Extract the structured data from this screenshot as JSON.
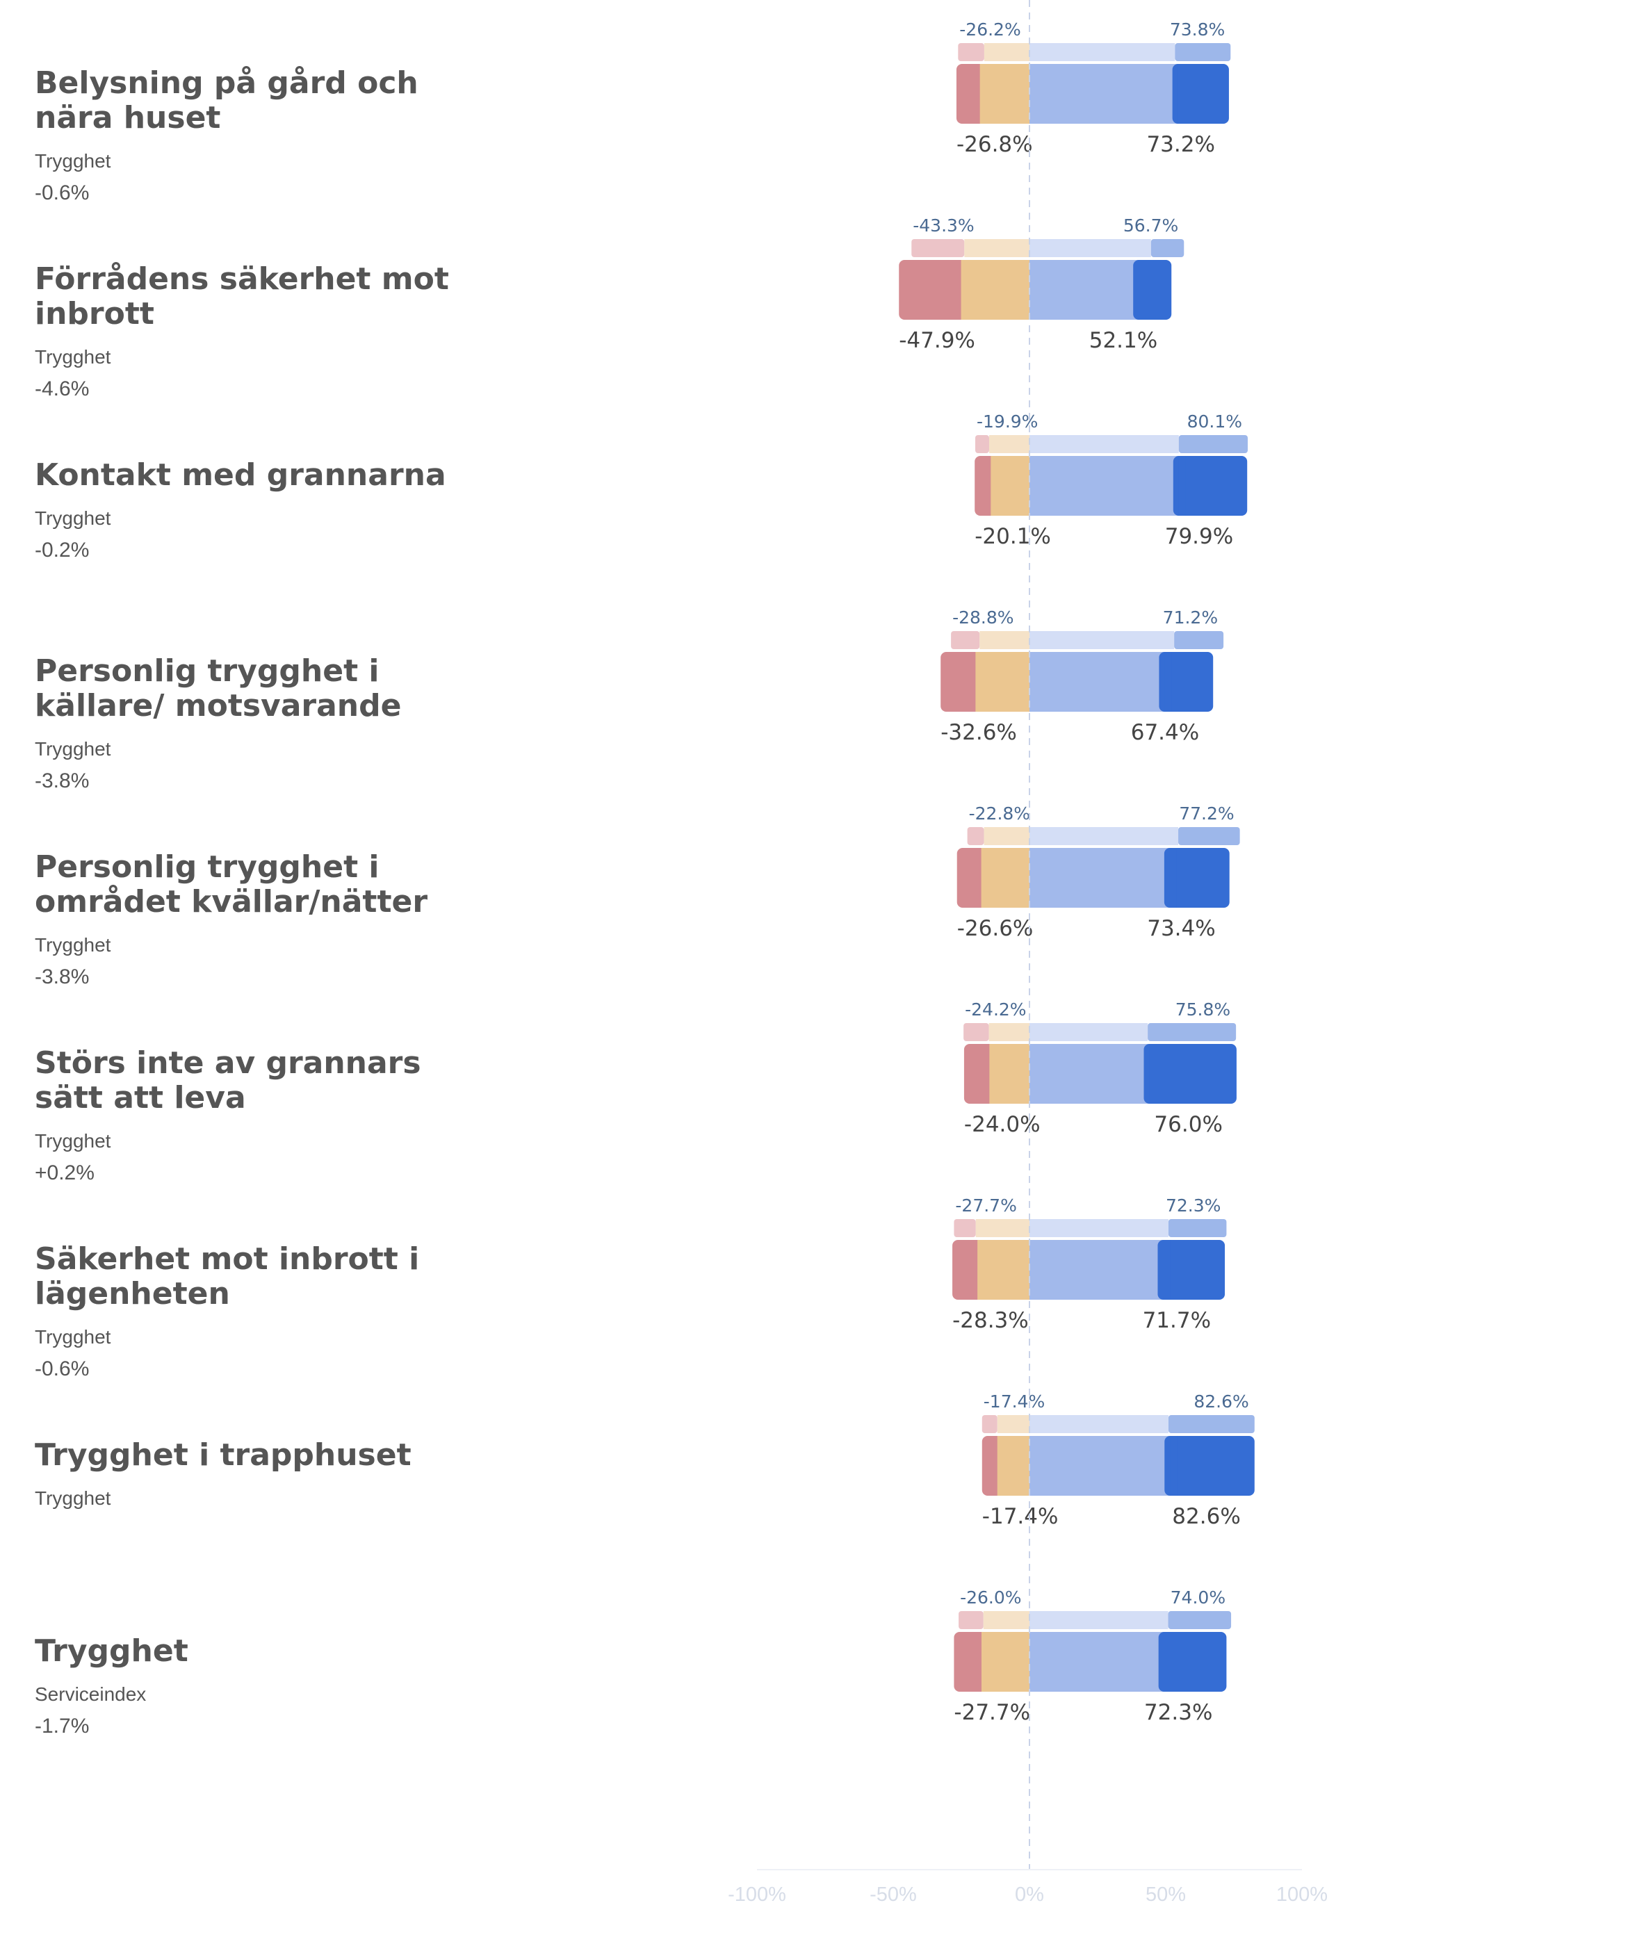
{
  "chart_data": {
    "type": "diverging-stacked-bar",
    "x_ticks": [
      "-100%",
      "-50%",
      "0%",
      "50%",
      "100%"
    ],
    "xlim": [
      -100,
      100
    ],
    "colors": {
      "neg_strong": "#d48a90",
      "neg_weak": "#ebc690",
      "pos_weak": "#a2b9eb",
      "pos_strong": "#356dd4",
      "ref_neg_strong": "#ecc4c8",
      "ref_neg_weak": "#f5e2c8",
      "ref_pos_weak": "#d4def6",
      "ref_pos_strong": "#9db7ea"
    },
    "rows": [
      {
        "title": "Belysning på gård och nära huset",
        "category": "Trygghet",
        "delta": "-0.6%",
        "neg_label": "-26.8%",
        "pos_label": "73.2%",
        "ref_neg_label": "-26.2%",
        "ref_pos_label": "73.8%",
        "neg_strong": 8.6,
        "neg_weak": 18.2,
        "pos_weak": 54.5,
        "pos_strong": 18.7,
        "ref_neg_strong": 9.6,
        "ref_neg_weak": 16.6,
        "ref_pos_weak": 53.4,
        "ref_pos_strong": 20.4
      },
      {
        "title": "Förrådens säkerhet mot inbrott",
        "category": "Trygghet",
        "delta": "-4.6%",
        "neg_label": "-47.9%",
        "pos_label": "52.1%",
        "ref_neg_label": "-43.3%",
        "ref_pos_label": "56.7%",
        "neg_strong": 22.8,
        "neg_weak": 25.1,
        "pos_weak": 40.1,
        "pos_strong": 12.0,
        "ref_neg_strong": 19.4,
        "ref_neg_weak": 23.9,
        "ref_pos_weak": 44.6,
        "ref_pos_strong": 12.1
      },
      {
        "title": "Kontakt med grannarna",
        "category": "Trygghet",
        "delta": "-0.2%",
        "neg_label": "-20.1%",
        "pos_label": "79.9%",
        "ref_neg_label": "-19.9%",
        "ref_pos_label": "80.1%",
        "neg_strong": 5.9,
        "neg_weak": 14.2,
        "pos_weak": 54.8,
        "pos_strong": 25.1,
        "ref_neg_strong": 5.1,
        "ref_neg_weak": 14.8,
        "ref_pos_weak": 54.8,
        "ref_pos_strong": 25.3
      },
      {
        "title": "Personlig trygghet i källare/ motsvarande",
        "category": "Trygghet",
        "delta": "-3.8%",
        "neg_label": "-32.6%",
        "pos_label": "67.4%",
        "ref_neg_label": "-28.8%",
        "ref_pos_label": "71.2%",
        "neg_strong": 12.8,
        "neg_weak": 19.8,
        "pos_weak": 49.6,
        "pos_strong": 17.8,
        "ref_neg_strong": 10.5,
        "ref_neg_weak": 18.3,
        "ref_pos_weak": 53.1,
        "ref_pos_strong": 18.1
      },
      {
        "title": "Personlig trygghet i området kvällar/nätter",
        "category": "Trygghet",
        "delta": "-3.8%",
        "neg_label": "-26.6%",
        "pos_label": "73.4%",
        "ref_neg_label": "-22.8%",
        "ref_pos_label": "77.2%",
        "neg_strong": 8.9,
        "neg_weak": 17.7,
        "pos_weak": 51.5,
        "pos_strong": 21.9,
        "ref_neg_strong": 6.1,
        "ref_neg_weak": 16.7,
        "ref_pos_weak": 54.6,
        "ref_pos_strong": 22.6
      },
      {
        "title": "Störs inte av grannars sätt att leva",
        "category": "Trygghet",
        "delta": "+0.2%",
        "neg_label": "-24.0%",
        "pos_label": "76.0%",
        "ref_neg_label": "-24.2%",
        "ref_pos_label": "75.8%",
        "neg_strong": 9.3,
        "neg_weak": 14.7,
        "pos_weak": 44.0,
        "pos_strong": 32.0,
        "ref_neg_strong": 9.3,
        "ref_neg_weak": 14.9,
        "ref_pos_weak": 43.4,
        "ref_pos_strong": 32.4
      },
      {
        "title": "Säkerhet mot inbrott i lägenheten",
        "category": "Trygghet",
        "delta": "-0.6%",
        "neg_label": "-28.3%",
        "pos_label": "71.7%",
        "ref_neg_label": "-27.7%",
        "ref_pos_label": "72.3%",
        "neg_strong": 9.2,
        "neg_weak": 19.1,
        "pos_weak": 49.1,
        "pos_strong": 22.6,
        "ref_neg_strong": 8.0,
        "ref_neg_weak": 19.7,
        "ref_pos_weak": 51.0,
        "ref_pos_strong": 21.3
      },
      {
        "title": "Trygghet i trapphuset",
        "category": "Trygghet",
        "delta": "",
        "neg_label": "-17.4%",
        "pos_label": "82.6%",
        "ref_neg_label": "-17.4%",
        "ref_pos_label": "82.6%",
        "neg_strong": 5.6,
        "neg_weak": 11.8,
        "pos_weak": 51.6,
        "pos_strong": 31.0,
        "ref_neg_strong": 5.6,
        "ref_neg_weak": 11.8,
        "ref_pos_weak": 51.0,
        "ref_pos_strong": 31.6
      },
      {
        "title": "Trygghet",
        "category": "Serviceindex",
        "delta": "-1.7%",
        "neg_label": "-27.7%",
        "pos_label": "72.3%",
        "ref_neg_label": "-26.0%",
        "ref_pos_label": "74.0%",
        "neg_strong": 10.1,
        "neg_weak": 17.6,
        "pos_weak": 49.4,
        "pos_strong": 22.9,
        "ref_neg_strong": 9.1,
        "ref_neg_weak": 16.9,
        "ref_pos_weak": 50.9,
        "ref_pos_strong": 23.1
      }
    ]
  }
}
